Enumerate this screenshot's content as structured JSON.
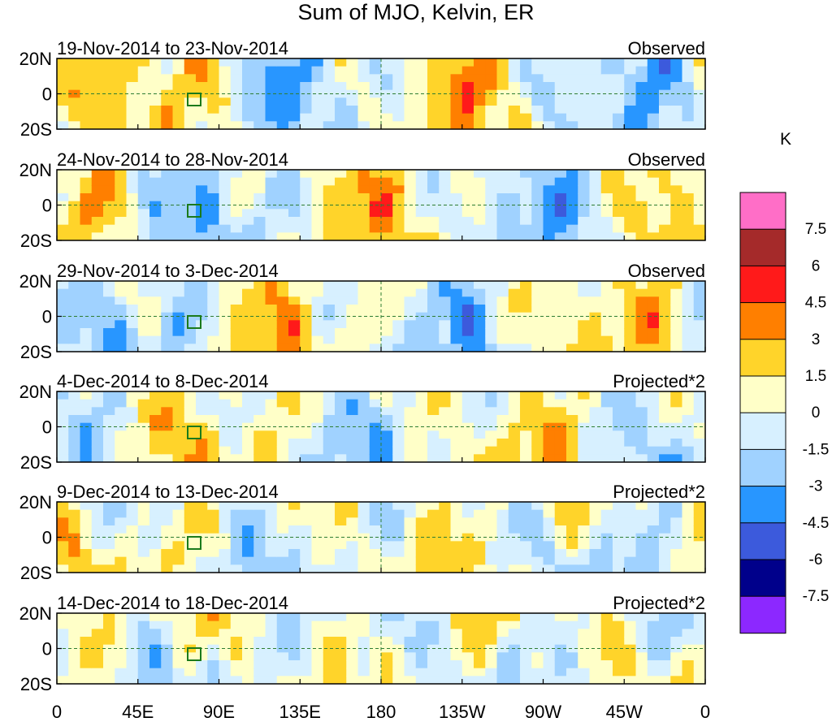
{
  "title": "Sum of MJO, Kelvin, ER",
  "chart_data": {
    "type": "heatmap",
    "title": "Sum of MJO, Kelvin, ER",
    "x_tick_labels": [
      "0",
      "45E",
      "90E",
      "135E",
      "180",
      "135W",
      "90W",
      "45W",
      "0"
    ],
    "y_tick_labels": [
      "20N",
      "0",
      "20S"
    ],
    "colorbar": {
      "unit": "K",
      "levels": [
        "7.5",
        "6",
        "4.5",
        "3",
        "1.5",
        "0",
        "-1.5",
        "-3",
        "-4.5",
        "-6",
        "-7.5"
      ],
      "colors": [
        "#ff6ec7",
        "#a52a2a",
        "#ff1a1a",
        "#ff7f00",
        "#ffd42a",
        "#ffffc8",
        "#d7f0ff",
        "#a0d2ff",
        "#2896ff",
        "#3c5adc",
        "#00008b",
        "#8c28ff"
      ]
    },
    "panels": [
      {
        "period": "19-Nov-2014 to 23-Nov-2014",
        "kind": "Observed"
      },
      {
        "period": "24-Nov-2014 to 28-Nov-2014",
        "kind": "Observed"
      },
      {
        "period": "29-Nov-2014 to 3-Dec-2014",
        "kind": "Observed"
      },
      {
        "period": "4-Dec-2014 to 8-Dec-2014",
        "kind": "Projected*2"
      },
      {
        "period": "9-Dec-2014 to 13-Dec-2014",
        "kind": "Projected*2"
      },
      {
        "period": "14-Dec-2014 to 18-Dec-2014",
        "kind": "Projected*2"
      }
    ]
  }
}
